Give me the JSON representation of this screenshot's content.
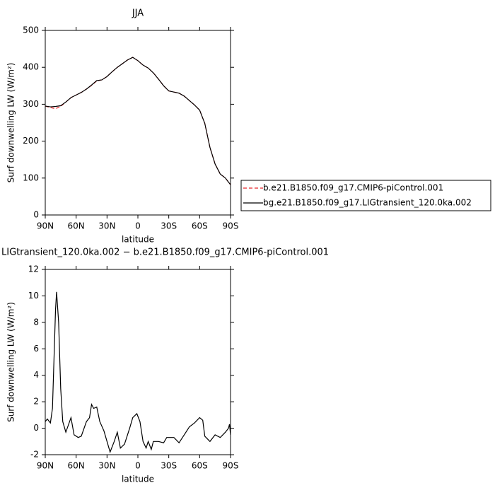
{
  "chart_data": [
    {
      "type": "line",
      "title": "JJA",
      "xlabel": "latitude",
      "ylabel": "Surf downwelling LW (W/m²)",
      "x": [
        90,
        85,
        80,
        75,
        70,
        65,
        60,
        55,
        50,
        45,
        40,
        35,
        30,
        25,
        20,
        15,
        10,
        5,
        0,
        -5,
        -10,
        -15,
        -20,
        -25,
        -30,
        -35,
        -40,
        -45,
        -50,
        -55,
        -60,
        -65,
        -70,
        -75,
        -80,
        -85,
        -90
      ],
      "series": [
        {
          "name": "b.e21.B1850.f09_g17.CMIP6-piControl.001",
          "color": "#e8262a",
          "dash": true,
          "values": [
            295,
            291,
            288,
            294,
            306,
            318,
            325,
            332,
            341,
            351,
            363,
            366,
            375,
            388,
            400,
            410,
            420,
            427,
            418,
            406,
            398,
            385,
            368,
            350,
            336,
            333,
            330,
            322,
            310,
            298,
            284,
            248,
            183,
            138,
            111,
            100,
            82
          ]
        },
        {
          "name": "bg.e21.B1850.f09_g17.LIGtransient_120.0ka.002",
          "color": "#000000",
          "dash": false,
          "values": [
            295,
            293,
            294,
            296,
            306,
            318,
            325,
            332,
            341,
            352,
            364,
            366,
            375,
            388,
            400,
            410,
            420,
            427,
            418,
            406,
            398,
            385,
            368,
            350,
            336,
            333,
            330,
            322,
            310,
            298,
            284,
            248,
            183,
            138,
            111,
            100,
            82
          ]
        }
      ],
      "xlim": [
        90,
        -90
      ],
      "xticks": [
        {
          "value": 90,
          "label": "90N"
        },
        {
          "value": 60,
          "label": "60N"
        },
        {
          "value": 30,
          "label": "30N"
        },
        0,
        {
          "value": -30,
          "label": "30S"
        },
        {
          "value": -60,
          "label": "60S"
        },
        {
          "value": -90,
          "label": "90S"
        }
      ],
      "ylim": [
        0,
        500
      ],
      "yticks": [
        0,
        100,
        200,
        300,
        400,
        500
      ],
      "legend": "right"
    },
    {
      "type": "line",
      "title": "LIGtransient_120.0ka.002 − b.e21.B1850.f09_g17.CMIP6-piControl.001",
      "xlabel": "latitude",
      "ylabel": "Surf downwelling LW (W/m²)",
      "x": [
        90,
        88,
        85,
        83,
        80,
        79,
        77,
        75,
        73,
        70,
        65,
        62,
        58,
        55,
        50,
        47,
        45,
        43,
        40,
        37,
        33,
        30,
        27,
        23,
        20,
        17,
        13,
        8,
        5,
        1,
        -2,
        -5,
        -8,
        -10,
        -13,
        -15,
        -20,
        -25,
        -28,
        -35,
        -40,
        -45,
        -50,
        -55,
        -60,
        -63,
        -65,
        -70,
        -75,
        -80,
        -85,
        -88,
        -89,
        -90
      ],
      "series": [
        {
          "color": "#000000",
          "dash": false,
          "values": [
            0.5,
            0.7,
            0.4,
            1.5,
            9,
            10.3,
            8,
            3,
            0.5,
            -0.3,
            0.8,
            -0.5,
            -0.7,
            -0.6,
            0.5,
            0.8,
            1.8,
            1.5,
            1.6,
            0.5,
            -0.2,
            -1.0,
            -1.8,
            -1.0,
            -0.3,
            -1.5,
            -1.2,
            0,
            0.8,
            1.1,
            0.5,
            -1.0,
            -1.5,
            -1.0,
            -1.6,
            -1.0,
            -1.0,
            -1.1,
            -0.7,
            -0.7,
            -1.1,
            -0.5,
            0.1,
            0.4,
            0.8,
            0.6,
            -0.6,
            -1.0,
            -0.5,
            -0.7,
            -0.3,
            0.0,
            0.3,
            -0.5
          ]
        }
      ],
      "xlim": [
        90,
        -90
      ],
      "xticks": [
        {
          "value": 90,
          "label": "90N"
        },
        {
          "value": 60,
          "label": "60N"
        },
        {
          "value": 30,
          "label": "30N"
        },
        0,
        {
          "value": -30,
          "label": "30S"
        },
        {
          "value": -60,
          "label": "60S"
        },
        {
          "value": -90,
          "label": "90S"
        }
      ],
      "ylim": [
        -2,
        12
      ],
      "yticks": [
        -2,
        0,
        2,
        4,
        6,
        8,
        10,
        12
      ]
    }
  ]
}
